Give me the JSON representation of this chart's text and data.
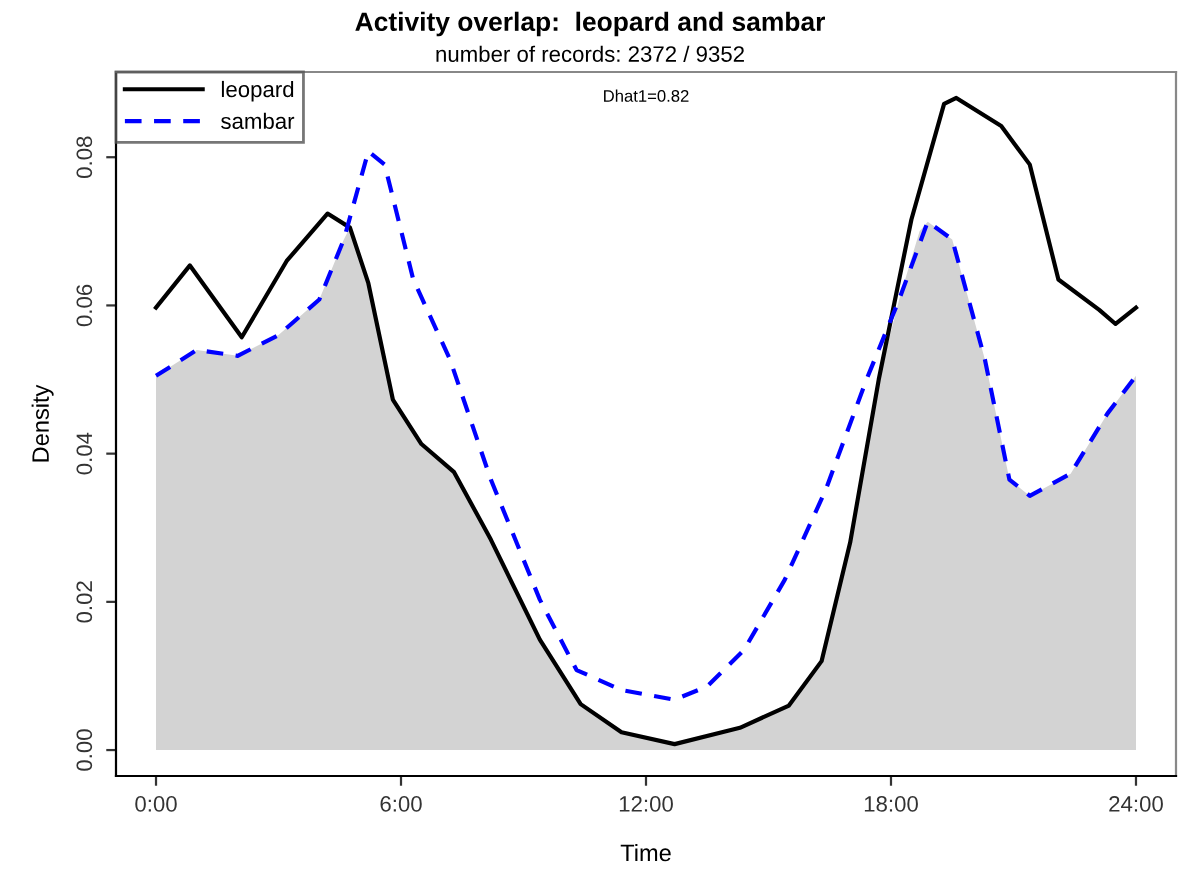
{
  "chart_data": {
    "type": "line",
    "title": "Activity overlap:  leopard and sambar",
    "subtitle": "number of records: 2372 / 9352",
    "xlabel": "Time",
    "ylabel": "Density",
    "annotations": [
      "Dhat1=0.82"
    ],
    "series": [
      {
        "type": "area",
        "color": "#d3d3d3",
        "x": [
          0,
          1,
          2,
          3,
          4,
          4.6,
          4.75,
          5.2,
          5.8,
          6.5,
          7.3,
          8.2,
          9.4,
          10.4,
          11.4,
          12.7,
          14.3,
          15.5,
          16.3,
          17,
          17.7,
          18.2,
          18.7,
          18.9,
          19.5,
          20.3,
          20.9,
          21.4,
          22.4,
          23.3,
          24
        ],
        "values": [
          0.0505,
          0.054,
          0.0532,
          0.056,
          0.0608,
          0.0689,
          0.0705,
          0.063,
          0.0473,
          0.0413,
          0.0375,
          0.0284,
          0.0149,
          0.0062,
          0.0024,
          0.0008,
          0.003,
          0.006,
          0.012,
          0.028,
          0.05,
          0.0608,
          0.07,
          0.0713,
          0.0689,
          0.0527,
          0.0365,
          0.0343,
          0.0373,
          0.0454,
          0.0505
        ]
      },
      {
        "name": "leopard",
        "color": "#000000",
        "line_style": "solid",
        "x": [
          0,
          0.83,
          2.1,
          3.2,
          4.2,
          4.75,
          5.2,
          5.8,
          6.5,
          7.3,
          8.2,
          9.4,
          10.4,
          11.4,
          12.7,
          14.3,
          15.5,
          16.3,
          17,
          17.7,
          18.5,
          19.3,
          19.6,
          20.7,
          21.4,
          22.1,
          23.1,
          23.5,
          24
        ],
        "values": [
          0.0597,
          0.0654,
          0.0557,
          0.066,
          0.0724,
          0.0705,
          0.063,
          0.0473,
          0.0413,
          0.0375,
          0.0284,
          0.0149,
          0.0062,
          0.0024,
          0.0008,
          0.003,
          0.006,
          0.012,
          0.028,
          0.05,
          0.0716,
          0.0872,
          0.088,
          0.0842,
          0.079,
          0.0635,
          0.0594,
          0.0575,
          0.0597
        ]
      },
      {
        "name": "sambar",
        "color": "#0000ff",
        "line_style": "dashed",
        "x": [
          0,
          1,
          2,
          3,
          4,
          4.6,
          5.2,
          5.6,
          6.3,
          7.2,
          8.2,
          9.4,
          10.3,
          11.4,
          12.7,
          13.5,
          14.4,
          15.4,
          16.4,
          17.4,
          18.2,
          18.9,
          19.5,
          20.3,
          20.9,
          21.4,
          22.4,
          23.3,
          24
        ],
        "values": [
          0.0505,
          0.054,
          0.0532,
          0.056,
          0.0608,
          0.0689,
          0.0808,
          0.079,
          0.0635,
          0.0527,
          0.0365,
          0.0203,
          0.0108,
          0.0081,
          0.0068,
          0.0086,
          0.0135,
          0.023,
          0.0351,
          0.05,
          0.0608,
          0.0713,
          0.0689,
          0.0527,
          0.0365,
          0.0343,
          0.0373,
          0.0454,
          0.0505
        ]
      }
    ],
    "xlim": [
      -0.98,
      24.98
    ],
    "ylim": [
      -0.0035,
      0.0915
    ],
    "xticks": [
      {
        "value": 0,
        "label": "0:00"
      },
      {
        "value": 6,
        "label": "6:00"
      },
      {
        "value": 12,
        "label": "12:00"
      },
      {
        "value": 18,
        "label": "18:00"
      },
      {
        "value": 24,
        "label": "24:00"
      }
    ],
    "yticks": [
      {
        "value": 0,
        "label": "0.00"
      },
      {
        "value": 0.02,
        "label": "0.02"
      },
      {
        "value": 0.04,
        "label": "0.04"
      },
      {
        "value": 0.06,
        "label": "0.06"
      },
      {
        "value": 0.08,
        "label": "0.08"
      }
    ],
    "grid": false,
    "legend": "top left",
    "marker": "none"
  }
}
